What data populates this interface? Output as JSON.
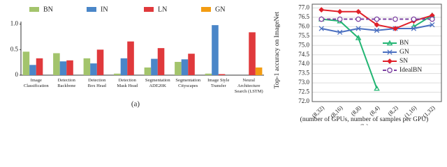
{
  "chart_data": [
    {
      "type": "bar",
      "caption": "(a)",
      "categories": [
        "Image\nClassification",
        "Detection\nBackbone",
        "Detection\nBox Head",
        "Detection\nMask Head",
        "Segmentation\nADE20K",
        "Segmentation\nCityscapes",
        "Image Style\nTransfer",
        "Neural Architecture\nSearch (LSTM)"
      ],
      "series": [
        {
          "name": "BN",
          "color": "#a3c46c",
          "values": [
            0.46,
            0.43,
            0.33,
            0.03,
            0.15,
            0.26,
            0.03,
            0
          ]
        },
        {
          "name": "IN",
          "color": "#4a86c8",
          "values": [
            0.2,
            0.27,
            0.23,
            0.33,
            0.32,
            0.31,
            0.98,
            0
          ]
        },
        {
          "name": "LN",
          "color": "#e0393c",
          "values": [
            0.33,
            0.29,
            0.5,
            0.66,
            0.53,
            0.42,
            0.02,
            0.84
          ]
        },
        {
          "name": "GN",
          "color": "#f39c12",
          "values": [
            0,
            0,
            0,
            0,
            0,
            0,
            0,
            0.15
          ]
        }
      ],
      "ylim": [
        0,
        1.05
      ],
      "yticks": [
        0,
        0.5,
        {
          "value": 1,
          "label": "1.0"
        }
      ],
      "grid": false
    },
    {
      "type": "line",
      "caption": "(b)",
      "ylabel": "Top-1 accuracy on ImageNet",
      "xlabel": "(number of GPUs, number of samples per GPU)",
      "categories": [
        "(8,32)",
        "(8,16)",
        "(8,8)",
        "(8,4)",
        "(8,2)",
        "(1,16)",
        "(1,32)"
      ],
      "series": [
        {
          "name": "BN",
          "color": "#22b573",
          "marker": "triangle",
          "values": [
            76.4,
            76.3,
            75.4,
            72.7,
            null,
            76.0,
            76.6
          ]
        },
        {
          "name": "GN",
          "color": "#4a6fc0",
          "marker": "x",
          "values": [
            75.9,
            75.7,
            75.9,
            75.8,
            75.9,
            75.9,
            76.1
          ]
        },
        {
          "name": "SN",
          "color": "#e0202a",
          "marker": "diamond",
          "values": [
            76.9,
            76.8,
            76.8,
            76.1,
            75.9,
            76.3,
            76.6
          ]
        },
        {
          "name": "IdealBN",
          "color": "#7a3fa0",
          "marker": "circle",
          "dashed": true,
          "values": [
            76.4,
            76.4,
            76.4,
            76.4,
            76.4,
            76.4,
            76.4
          ]
        }
      ],
      "ylim": [
        72,
        77.2
      ],
      "yticks": [
        {
          "value": 72,
          "label": "72.0"
        },
        72.5,
        {
          "value": 73,
          "label": "73.0"
        },
        73.5,
        {
          "value": 74,
          "label": "74.0"
        },
        74.5,
        {
          "value": 75,
          "label": "75.0"
        },
        75.5,
        {
          "value": 76,
          "label": "76.0"
        },
        76.5,
        {
          "value": 77,
          "label": "77.0"
        }
      ],
      "grid": true
    }
  ]
}
